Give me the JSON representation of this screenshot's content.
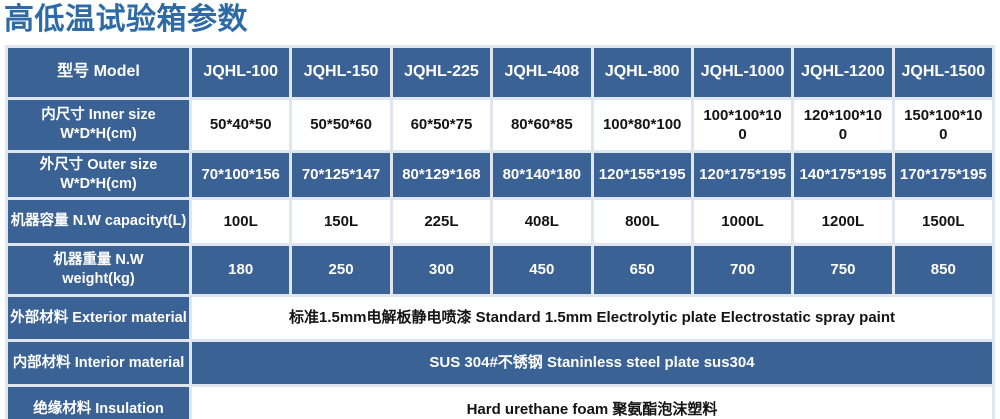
{
  "page_title": "高低温试验箱参数",
  "colors": {
    "title_blue": "#2E6BA6",
    "cell_blue": "#3B6295",
    "cell_border": "#DFE6EF",
    "light_row_bg": "#FFFFFF",
    "dark_text": "#141414",
    "light_text": "#FFFFFF"
  },
  "table": {
    "header_label": "型号 Model",
    "models": [
      "JQHL-100",
      "JQHL-150",
      "JQHL-225",
      "JQHL-408",
      "JQHL-800",
      "JQHL-1000",
      "JQHL-1200",
      "JQHL-1500"
    ],
    "rows": [
      {
        "id": "inner-size",
        "label": "内尺寸 Inner size\nW*D*H(cm)",
        "variant": "light",
        "values": [
          "50*40*50",
          "50*50*60",
          "60*50*75",
          "80*60*85",
          "100*80*100",
          "100*100*10\n0",
          "120*100*10\n0",
          "150*100*10\n0"
        ]
      },
      {
        "id": "outer-size",
        "label": "外尺寸 Outer size\nW*D*H(cm)",
        "variant": "dark",
        "values": [
          "70*100*156",
          "70*125*147",
          "80*129*168",
          "80*140*180",
          "120*155*195",
          "120*175*195",
          "140*175*195",
          "170*175*195"
        ]
      },
      {
        "id": "capacity",
        "label": "机器容量 N.W capacityt(L)",
        "variant": "light",
        "values": [
          "100L",
          "150L",
          "225L",
          "408L",
          "800L",
          "1000L",
          "1200L",
          "1500L"
        ]
      },
      {
        "id": "weight",
        "label": "机器重量 N.W\nweight(kg)",
        "variant": "dark",
        "values": [
          "180",
          "250",
          "300",
          "450",
          "650",
          "700",
          "750",
          "850"
        ]
      },
      {
        "id": "exterior-material",
        "label": "外部材料 Exterior material",
        "variant": "light",
        "merged_value": "标准1.5mm电解板静电喷漆  Standard 1.5mm Electrolytic plate Electrostatic spray paint"
      },
      {
        "id": "interior-material",
        "label": "内部材料 Interior material",
        "variant": "dark",
        "merged_value": "SUS 304#不锈钢 Staninless steel plate sus304"
      },
      {
        "id": "insulation",
        "label": "绝缘材料 Insulation",
        "variant": "light",
        "merged_value": "Hard urethane foam 聚氨酯泡沫塑料"
      }
    ]
  }
}
